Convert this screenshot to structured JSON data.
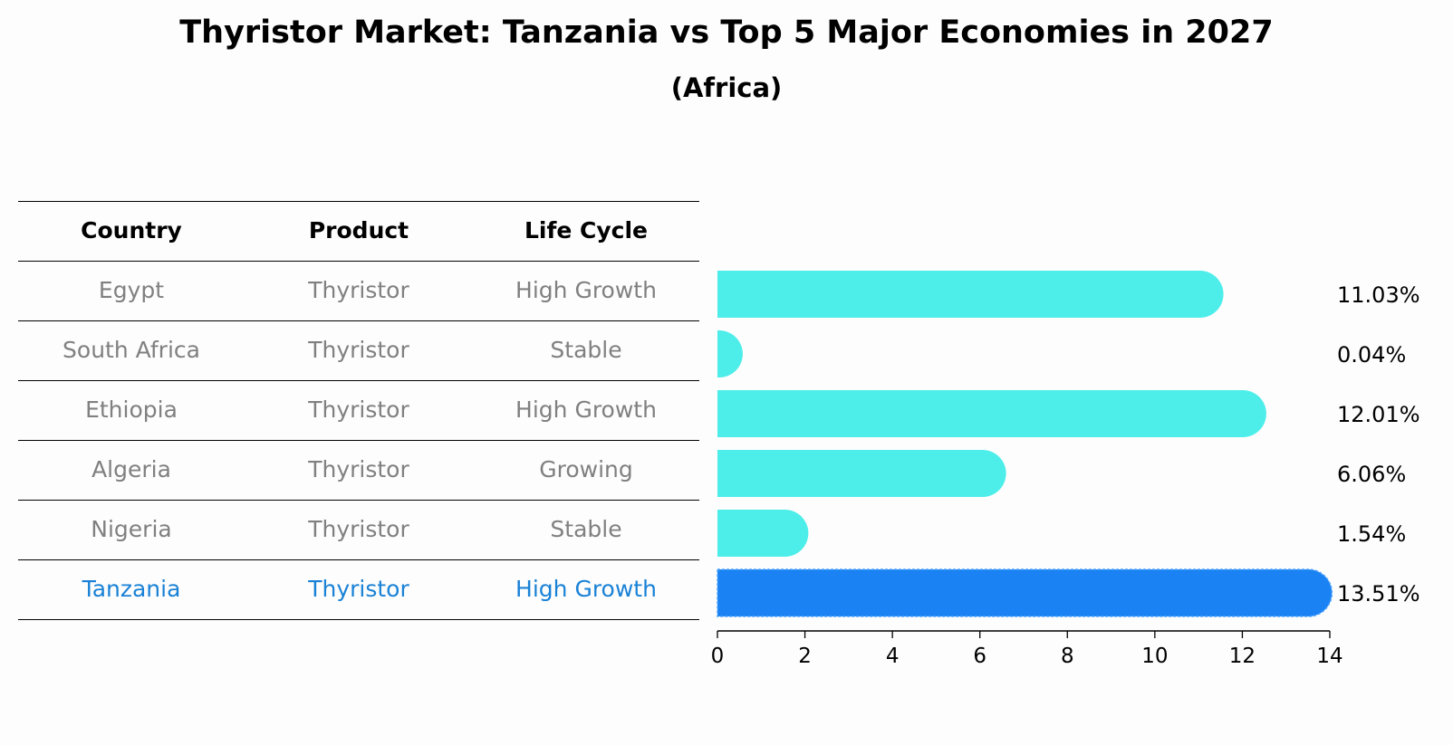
{
  "title": "Thyristor Market: Tanzania vs Top 5 Major Economies in 2027",
  "subtitle": "(Africa)",
  "table": {
    "headers": [
      "Country",
      "Product",
      "Life Cycle"
    ],
    "rows": [
      [
        "Egypt",
        "Thyristor",
        "High Growth"
      ],
      [
        "South Africa",
        "Thyristor",
        "Stable"
      ],
      [
        "Ethiopia",
        "Thyristor",
        "High Growth"
      ],
      [
        "Algeria",
        "Thyristor",
        "Growing"
      ],
      [
        "Nigeria",
        "Thyristor",
        "Stable"
      ],
      [
        "Tanzania",
        "Thyristor",
        "High Growth"
      ]
    ],
    "highlight_row": 5
  },
  "chart_data": {
    "type": "bar",
    "orientation": "horizontal",
    "categories": [
      "Egypt",
      "South Africa",
      "Ethiopia",
      "Algeria",
      "Nigeria",
      "Tanzania"
    ],
    "values": [
      11.03,
      0.04,
      12.01,
      6.06,
      1.54,
      13.51
    ],
    "value_labels": [
      "11.03%",
      "0.04%",
      "12.01%",
      "6.06%",
      "1.54%",
      "13.51%"
    ],
    "xlim": [
      0,
      14
    ],
    "xticks": [
      0,
      2,
      4,
      6,
      8,
      10,
      12,
      14
    ],
    "colors": {
      "default": "#4deeea",
      "highlight": "#1a82f2"
    },
    "highlight_index": 5
  }
}
